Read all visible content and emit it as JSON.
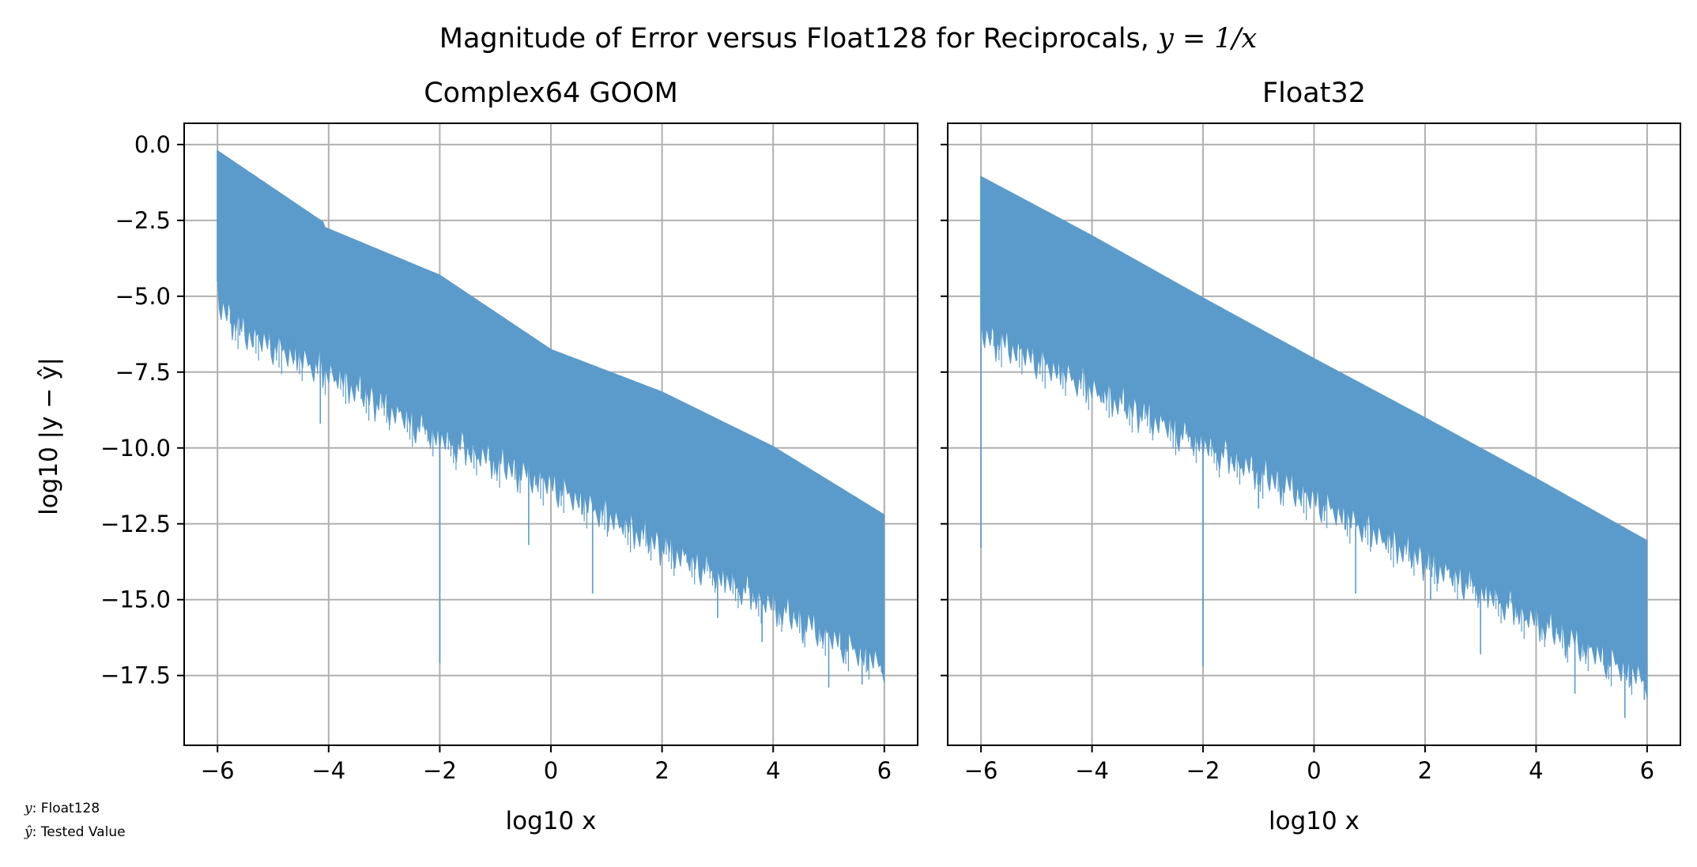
{
  "figure": {
    "title_main": "Magnitude of Error versus Float128 for Reciprocals, ",
    "title_math": "y = 1/x",
    "ylabel": "log10 |y − ŷ|",
    "xlabel": "log10 x",
    "legend_note": [
      {
        "symbol": "y",
        "text": ": Float128"
      },
      {
        "symbol": "ŷ",
        "text": ": Tested Value"
      }
    ],
    "colors": {
      "series": "#5b9bcb",
      "grid": "#b0b0b0",
      "axes": "#000000"
    }
  },
  "chart_data": [
    {
      "type": "area",
      "title": "Complex64 GOOM",
      "xlabel": "log10 x",
      "ylabel": "log10 |y − ŷ|",
      "xlim": [
        -6.6,
        6.6
      ],
      "ylim": [
        -19.8,
        0.7
      ],
      "xticks": [
        -6,
        -4,
        -2,
        0,
        2,
        4,
        6
      ],
      "yticks": [
        0.0,
        -2.5,
        -5.0,
        -7.5,
        -10.0,
        -12.5,
        -15.0,
        -17.5
      ],
      "grid": true,
      "series": [
        {
          "upper": {
            "x": [
              -6,
              -4.1,
              -4.1,
              -2,
              0,
              2,
              4,
              6
            ],
            "y": [
              -0.2,
              -2.55,
              -2.7,
              -4.3,
              -6.75,
              -8.15,
              -9.95,
              -12.2
            ]
          },
          "lower": {
            "x": [
              -6,
              -5.5,
              -4,
              -2,
              0,
              2,
              4,
              6
            ],
            "y": [
              -4.5,
              -5.5,
              -6.8,
              -9.0,
              -10.5,
              -12.5,
              -14.5,
              -16.5
            ]
          },
          "spikes": [
            {
              "x": -2.0,
              "y": -17.1
            },
            {
              "x": -4.15,
              "y": -9.2
            },
            {
              "x": -5.6,
              "y": -6.3
            },
            {
              "x": -3.6,
              "y": -7.8
            },
            {
              "x": -0.4,
              "y": -13.2
            },
            {
              "x": 0.75,
              "y": -14.8
            },
            {
              "x": 3.0,
              "y": -15.6
            },
            {
              "x": 3.8,
              "y": -16.4
            },
            {
              "x": 5.0,
              "y": -17.9
            },
            {
              "x": 5.6,
              "y": -17.8
            },
            {
              "x": 5.95,
              "y": -17.4
            }
          ]
        }
      ]
    },
    {
      "type": "area",
      "title": "Float32",
      "xlabel": "log10 x",
      "xlim": [
        -6.6,
        6.6
      ],
      "ylim": [
        -19.8,
        0.7
      ],
      "xticks": [
        -6,
        -4,
        -2,
        0,
        2,
        4,
        6
      ],
      "yticks": [
        0.0,
        -2.5,
        -5.0,
        -7.5,
        -10.0,
        -12.5,
        -15.0,
        -17.5
      ],
      "grid": true,
      "series": [
        {
          "upper": {
            "x": [
              -6,
              -4,
              -2,
              0,
              2,
              4,
              6
            ],
            "y": [
              -1.05,
              -3.0,
              -5.05,
              -7.05,
              -9.0,
              -11.0,
              -13.05
            ]
          },
          "lower": {
            "x": [
              -6,
              -4,
              -2,
              0,
              2,
              4,
              6
            ],
            "y": [
              -5.5,
              -7.3,
              -9.2,
              -11.0,
              -13.0,
              -15.0,
              -17.0
            ]
          },
          "spikes": [
            {
              "x": -6.0,
              "y": -13.3
            },
            {
              "x": -2.0,
              "y": -17.2
            },
            {
              "x": -3.8,
              "y": -8.5
            },
            {
              "x": -1.0,
              "y": -12.0
            },
            {
              "x": 0.75,
              "y": -14.8
            },
            {
              "x": 2.1,
              "y": -15.0
            },
            {
              "x": 3.0,
              "y": -16.8
            },
            {
              "x": 4.7,
              "y": -18.1
            },
            {
              "x": 5.6,
              "y": -18.9
            },
            {
              "x": 5.95,
              "y": -18.3
            }
          ]
        }
      ]
    }
  ]
}
